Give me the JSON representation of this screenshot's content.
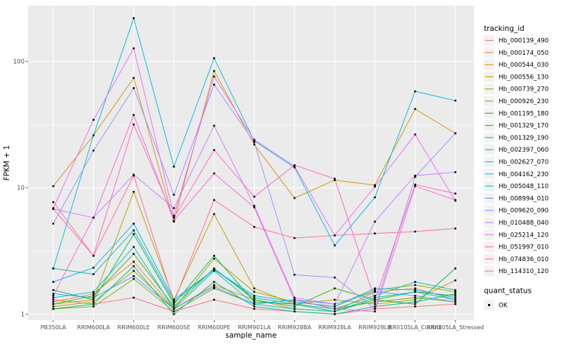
{
  "chart_data": {
    "type": "line",
    "title": "",
    "xlabel": "sample_name",
    "ylabel": "FPKM + 1",
    "y_scale": "log10",
    "ylim": [
      0.9,
      280
    ],
    "y_ticks": [
      1,
      10,
      100
    ],
    "y_tick_labels": [
      "1",
      "10",
      "100"
    ],
    "y_minor_ticks": [
      3.162,
      31.62
    ],
    "grid": "white major and minor gridlines on gray panel",
    "panel_bg": "#EBEBEB",
    "marker": "black-square",
    "legend_position": "right",
    "legend_title": "tracking_id",
    "legend2_title": "quant_status",
    "legend2_items": [
      {
        "label": "OK",
        "symbol": "black-square"
      }
    ],
    "categories": [
      "PB350LA",
      "RRIM600LA",
      "RRIM600LE",
      "RRIM600SE",
      "RRIM600PE",
      "RRIM901LA",
      "RRIM928BA",
      "RRIM928LA",
      "RRIM928LB",
      "RRII105LA_Control",
      "RRII105LA_Stressed"
    ],
    "series": [
      {
        "name": "Hb_000139_490",
        "color": "#F8766D",
        "values": [
          1.3,
          1.2,
          1.35,
          1.05,
          1.3,
          1.1,
          1.05,
          1.0,
          1.1,
          1.15,
          1.2
        ]
      },
      {
        "name": "Hb_000174_050",
        "color": "#EA8331",
        "values": [
          1.25,
          1.45,
          2.6,
          1.1,
          1.7,
          1.3,
          1.1,
          1.05,
          1.5,
          1.6,
          1.3
        ]
      },
      {
        "name": "Hb_000544_030",
        "color": "#D89000",
        "values": [
          10.3,
          26,
          74,
          5.4,
          84,
          22,
          8.3,
          11.5,
          10.5,
          42,
          27
        ]
      },
      {
        "name": "Hb_000556_130",
        "color": "#C09B00",
        "values": [
          1.2,
          1.3,
          9.3,
          1.3,
          6.2,
          1.6,
          1.2,
          1.3,
          1.2,
          1.3,
          1.85
        ]
      },
      {
        "name": "Hb_000739_270",
        "color": "#A3A500",
        "values": [
          1.15,
          1.25,
          2.2,
          1.1,
          2.75,
          1.5,
          1.25,
          1.15,
          1.55,
          1.7,
          1.5
        ]
      },
      {
        "name": "Hb_000926_230",
        "color": "#7CAE00",
        "values": [
          1.1,
          1.15,
          1.9,
          1.05,
          1.6,
          1.2,
          1.3,
          1.1,
          1.25,
          1.35,
          1.25
        ]
      },
      {
        "name": "Hb_001195_180",
        "color": "#39B600",
        "values": [
          1.2,
          1.4,
          3.0,
          1.15,
          2.3,
          1.3,
          1.15,
          1.6,
          1.3,
          1.5,
          1.4
        ]
      },
      {
        "name": "Hb_001329_170",
        "color": "#00BB4E",
        "values": [
          1.55,
          1.3,
          4.3,
          1.2,
          2.9,
          1.25,
          1.2,
          1.05,
          1.3,
          1.2,
          2.3
        ]
      },
      {
        "name": "Hb_001329_190",
        "color": "#00BF7D",
        "values": [
          1.1,
          1.2,
          2.4,
          1.0,
          1.8,
          1.15,
          1.05,
          1.0,
          1.15,
          1.25,
          1.45
        ]
      },
      {
        "name": "Hb_002397_060",
        "color": "#00C1A3",
        "values": [
          2.3,
          2.07,
          4.6,
          1.25,
          2.25,
          1.35,
          1.2,
          1.1,
          1.4,
          1.8,
          1.55
        ]
      },
      {
        "name": "Hb_002627_070",
        "color": "#00BFC4",
        "values": [
          1.35,
          1.5,
          3.4,
          1.1,
          2.2,
          1.2,
          1.1,
          1.05,
          1.35,
          1.5,
          1.3
        ]
      },
      {
        "name": "Hb_004162_230",
        "color": "#00BAE0",
        "values": [
          2.3,
          26,
          220,
          14.7,
          106,
          23.5,
          14.5,
          3.5,
          8.4,
          58,
          49
        ]
      },
      {
        "name": "Hb_005048_110",
        "color": "#00B0F6",
        "values": [
          1.8,
          2.33,
          5.2,
          1.3,
          2.25,
          1.4,
          1.25,
          1.15,
          1.6,
          1.55,
          1.35
        ]
      },
      {
        "name": "Hb_008994_010",
        "color": "#35A2FF",
        "values": [
          1.45,
          1.35,
          2.0,
          1.1,
          1.65,
          1.2,
          1.3,
          1.2,
          1.5,
          1.4,
          1.25
        ]
      },
      {
        "name": "Hb_009620_090",
        "color": "#9590FF",
        "values": [
          5.2,
          19.7,
          61.5,
          8.8,
          65.5,
          23,
          2.05,
          1.95,
          1.1,
          12.2,
          27
        ]
      },
      {
        "name": "Hb_010488_040",
        "color": "#C77CFF",
        "values": [
          6.8,
          5.8,
          12.7,
          6.9,
          31,
          7.2,
          1.35,
          1.2,
          5.4,
          12.5,
          13.3
        ]
      },
      {
        "name": "Hb_025214_120",
        "color": "#E76BF3",
        "values": [
          6.9,
          34.5,
          127,
          6.0,
          76,
          24,
          14.8,
          4.2,
          10.2,
          26.4,
          7.9
        ]
      },
      {
        "name": "Hb_051997_010",
        "color": "#FA62DB",
        "values": [
          1.4,
          5.8,
          37.7,
          5.5,
          13.0,
          7.0,
          1.3,
          1.1,
          1.05,
          10.3,
          8.0
        ]
      },
      {
        "name": "Hb_074836_010",
        "color": "#FF62BC",
        "values": [
          7.7,
          2.9,
          31.7,
          5.8,
          19.9,
          8.5,
          15.1,
          11.8,
          1.3,
          10.6,
          9.0
        ]
      },
      {
        "name": "Hb_114310_120",
        "color": "#FF6A98",
        "values": [
          6.8,
          2.9,
          12.5,
          1.25,
          8.0,
          4.9,
          4.0,
          4.2,
          4.35,
          4.5,
          4.76
        ]
      }
    ]
  },
  "style": {
    "tick_label_color": "#4D4D4D",
    "tick_mark_color": "#333333",
    "axis_title_color": "#000000",
    "legend_key_bg": "#F2F2F2",
    "point_color": "#000000"
  }
}
